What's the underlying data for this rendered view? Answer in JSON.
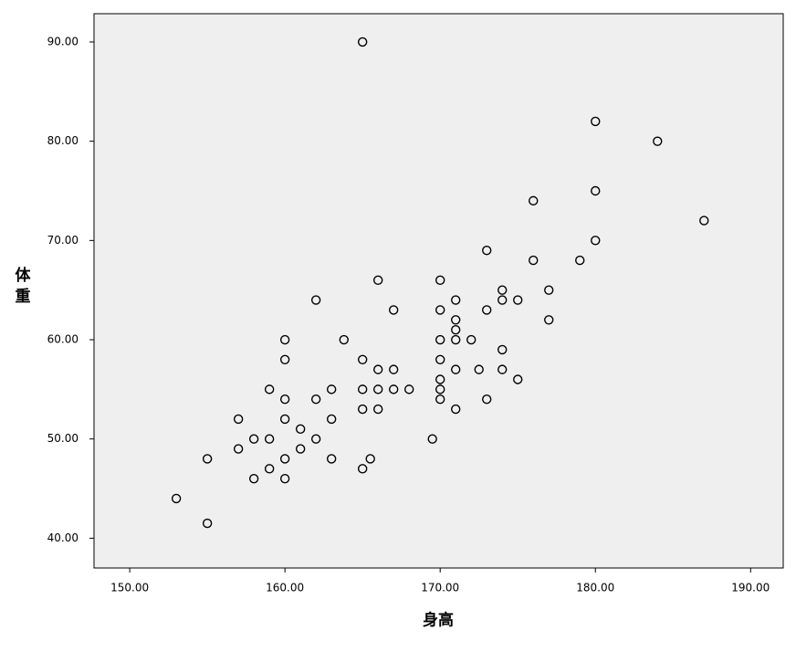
{
  "chart_data": {
    "type": "scatter",
    "x_label": "身高",
    "y_label": "体重",
    "x": [
      153,
      155,
      155,
      157,
      157,
      158,
      158,
      159,
      159,
      159,
      160,
      160,
      160,
      160,
      160,
      160,
      161,
      161,
      162,
      162,
      162,
      163,
      163,
      163,
      163.8,
      165,
      165,
      165,
      165,
      165,
      165.5,
      166,
      166,
      166,
      166,
      167,
      167,
      167,
      168,
      169.5,
      170,
      170,
      170,
      170,
      170,
      170,
      170,
      171,
      171,
      171,
      171,
      171,
      171,
      172,
      172.5,
      173,
      173,
      173,
      174,
      174,
      174,
      174,
      175,
      175,
      176,
      176,
      177,
      177,
      179,
      180,
      180,
      180,
      184,
      187
    ],
    "values": [
      44,
      41.5,
      48,
      52,
      49,
      50,
      46,
      55,
      50,
      47,
      60,
      58,
      54,
      52,
      48,
      46,
      51,
      49,
      64,
      54,
      50,
      55,
      52,
      48,
      60,
      90,
      58,
      55,
      53,
      47,
      48,
      66,
      57,
      55,
      53,
      63,
      57,
      55,
      55,
      50,
      66,
      63,
      60,
      58,
      56,
      55,
      54,
      64,
      62,
      61,
      60,
      57,
      53,
      60,
      57,
      69,
      63,
      54,
      65,
      64,
      59,
      57,
      64,
      56,
      74,
      68,
      65,
      62,
      68,
      82,
      75,
      70,
      80,
      72
    ],
    "color": "#000000",
    "xlim": [
      147.7,
      192.1
    ],
    "ylim": [
      37,
      92.85
    ],
    "xticks": [
      {
        "value": 150,
        "label": "150.00"
      },
      {
        "value": 160,
        "label": "160.00"
      },
      {
        "value": 170,
        "label": "170.00"
      },
      {
        "value": 180,
        "label": "180.00"
      },
      {
        "value": 190,
        "label": "190.00"
      }
    ],
    "yticks": [
      {
        "value": 40,
        "label": "40.00"
      },
      {
        "value": 50,
        "label": "50.00"
      },
      {
        "value": 60,
        "label": "60.00"
      },
      {
        "value": 70,
        "label": "70.00"
      },
      {
        "value": 80,
        "label": "80.00"
      },
      {
        "value": 90,
        "label": "90.00"
      }
    ],
    "background": "#efefef"
  }
}
